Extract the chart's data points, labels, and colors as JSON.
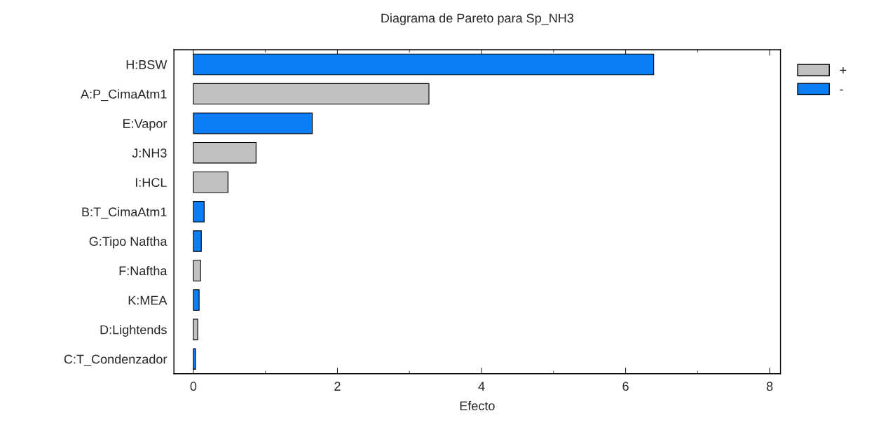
{
  "chart_data": {
    "type": "bar",
    "orientation": "horizontal",
    "title": "Diagrama de Pareto para Sp_NH3",
    "xlabel": "Efecto",
    "categories": [
      "H:BSW",
      "A:P_CimaAtm1",
      "E:Vapor",
      "J:NH3",
      "I:HCL",
      "B:T_CimaAtm1",
      "G:Tipo Naftha",
      "F:Naftha",
      "K:MEA",
      "D:Lightends",
      "C:T_Condenzador"
    ],
    "series": [
      {
        "name": "+",
        "color": "#c0c0c0",
        "values": [
          null,
          3.27,
          null,
          0.87,
          0.48,
          null,
          null,
          0.1,
          null,
          0.06,
          null
        ]
      },
      {
        "name": "-",
        "color": "#0a7ff5",
        "values": [
          6.39,
          null,
          1.65,
          null,
          null,
          0.15,
          0.11,
          null,
          0.08,
          null,
          0.03
        ]
      }
    ],
    "xlim": [
      -0.27,
      8.15
    ],
    "xticks": [
      0,
      2,
      4,
      6,
      8
    ],
    "grid": false,
    "legend": "top right"
  }
}
